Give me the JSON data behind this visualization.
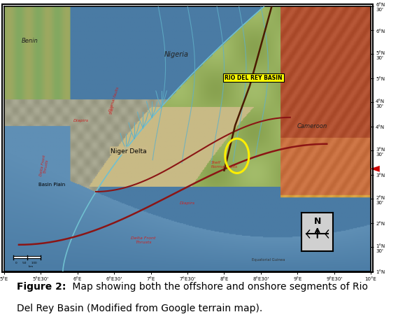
{
  "figure_width": 5.99,
  "figure_height": 4.77,
  "dpi": 100,
  "caption_bold": "Figure 2:",
  "caption_rest": " Map showing both the offshore and onshore segments of Rio\nDel Rey Basin (Modified from Google terrain map).",
  "caption_fontsize": 10.0,
  "background_color": "#ffffff",
  "border_color": "#000000",
  "x_tick_labels": [
    "5°E",
    "5°E30'",
    "6°E",
    "6°E30'",
    "7°E",
    "7°E30'",
    "8°E",
    "8°E30'",
    "9°E",
    "9°E30'",
    "10°E"
  ],
  "y_tick_labels": [
    "1°N",
    "1°N\n30'",
    "2°N",
    "2°N\n30'",
    "3°N",
    "3°N\n30'",
    "4°N",
    "4°N\n30'",
    "5°N",
    "5°N\n30'",
    "6°N",
    "6°N\n30'"
  ],
  "ocean_deep": "#4a7ba4",
  "ocean_shallow": "#5f8fb5",
  "shelf_grey": "#a0a08a",
  "shelf_light": "#b8b49a",
  "niger_delta_tan": "#c8ba85",
  "nigeria_green_light": "#b8c870",
  "nigeria_green_dark": "#7a9a50",
  "nigeria_green_mid": "#a0b860",
  "highlands_orange": "#c87040",
  "highlands_red": "#b05030",
  "highlands_yellow": "#d4a040",
  "benin_green": "#90a860",
  "coast_blue": "#70c0d0",
  "river_blue": "#60b0c8",
  "fault_color": "#8b1515",
  "label_red": "#cc2222",
  "yellow_box": "#ffff00",
  "yellow_ellipse": "#ffee00",
  "north_bg": "#d0d0d0",
  "arrow_red": "#cc0000",
  "scale_color": "#000000"
}
